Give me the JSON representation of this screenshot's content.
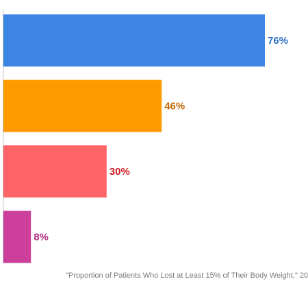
{
  "chart_data": {
    "type": "bar",
    "orientation": "horizontal",
    "categories": [
      "",
      "",
      "",
      ""
    ],
    "values": [
      76,
      46,
      30,
      8
    ],
    "value_labels": [
      "76%",
      "46%",
      "30%",
      "8%"
    ],
    "bar_colors": [
      "#3d85e5",
      "#fd9a00",
      "#ff6469",
      "#cc3f9a"
    ],
    "label_colors": [
      "#2e6fc7",
      "#c26700",
      "#cc1d27",
      "#b3287f"
    ],
    "xlim": [
      0,
      80
    ],
    "grid": false,
    "legend": "none",
    "caption": "\"Proportion of Patients Who Lost at Least 15% of Their Body Weight,\" 20"
  }
}
